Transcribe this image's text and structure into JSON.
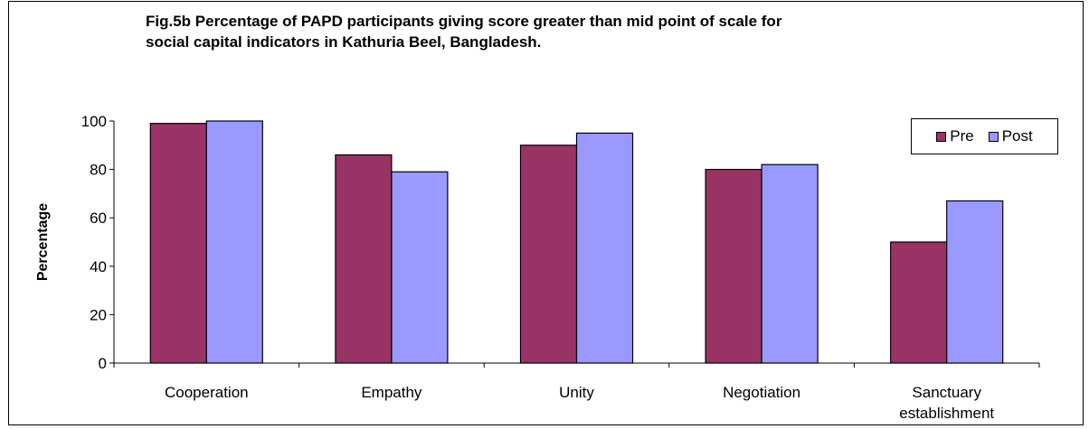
{
  "chart_data": {
    "type": "bar",
    "title_line1": "Fig.5b  Percentage of PAPD participants giving score greater than mid point of scale for",
    "title_line2": "social capital indicators in Kathuria Beel, Bangladesh.",
    "xlabel": "",
    "ylabel": "Percentage",
    "ylim": [
      0,
      100
    ],
    "yticks": [
      0,
      20,
      40,
      60,
      80,
      100
    ],
    "categories": [
      "Cooperation",
      "Empathy",
      "Unity",
      "Negotiation",
      "Sanctuary establishment"
    ],
    "series": [
      {
        "name": "Pre",
        "color": "#993366",
        "values": [
          99,
          86,
          90,
          80,
          50
        ]
      },
      {
        "name": "Post",
        "color": "#9999FF",
        "values": [
          100,
          79,
          95,
          82,
          67
        ]
      }
    ],
    "grid": false,
    "legend_position": "top-right"
  }
}
